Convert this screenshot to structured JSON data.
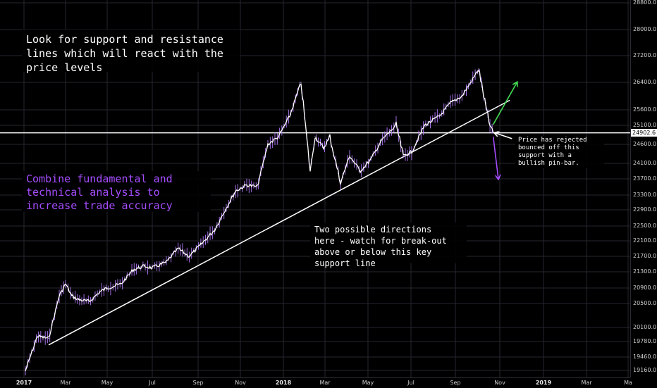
{
  "chart_data": {
    "type": "line",
    "title": "",
    "xlabel": "",
    "ylabel": "",
    "x_ticks": [
      "2017",
      "Mar",
      "May",
      "Jul",
      "Sep",
      "Nov",
      "2018",
      "Mar",
      "May",
      "Jul",
      "Sep",
      "Nov",
      "2019",
      "Mar",
      "Ma"
    ],
    "y_ticks": [
      "28800.0",
      "28000.0",
      "27200.0",
      "26400.0",
      "25600.0",
      "25100.0",
      "24600.0",
      "24100.0",
      "23700.0",
      "23300.0",
      "22900.0",
      "22500.0",
      "22100.0",
      "21700.0",
      "21300.0",
      "20900.0",
      "20500.0",
      "20100.0",
      "19780.0",
      "19460.0",
      "19160.0"
    ],
    "ylim": [
      19080,
      28900
    ],
    "grid": true,
    "series": [
      {
        "color": "#ffffff",
        "x": [
          "2017-01-03",
          "2017-01-20",
          "2017-02-05",
          "2017-02-20",
          "2017-03-01",
          "2017-03-10",
          "2017-03-20",
          "2017-04-05",
          "2017-04-20",
          "2017-05-01",
          "2017-05-20",
          "2017-06-05",
          "2017-06-20",
          "2017-07-01",
          "2017-07-20",
          "2017-08-05",
          "2017-08-20",
          "2017-09-05",
          "2017-09-25",
          "2017-10-10",
          "2017-10-25",
          "2017-11-10",
          "2017-11-25",
          "2017-12-10",
          "2017-12-25",
          "2018-01-10",
          "2018-01-26",
          "2018-02-08",
          "2018-02-15",
          "2018-02-27",
          "2018-03-08",
          "2018-03-23",
          "2018-04-05",
          "2018-04-20",
          "2018-05-05",
          "2018-05-20",
          "2018-06-10",
          "2018-06-20",
          "2018-07-02",
          "2018-07-20",
          "2018-08-10",
          "2018-08-25",
          "2018-09-10",
          "2018-09-25",
          "2018-10-03",
          "2018-10-10",
          "2018-10-17",
          "2018-10-23"
        ],
        "values": [
          19150,
          19900,
          19850,
          20700,
          21000,
          20700,
          20600,
          20550,
          20800,
          20900,
          21000,
          21350,
          21450,
          21400,
          21550,
          21900,
          21700,
          22000,
          22400,
          22900,
          23400,
          23550,
          23500,
          24600,
          24800,
          25400,
          26400,
          23900,
          24800,
          24500,
          24800,
          23600,
          24300,
          23900,
          24200,
          24700,
          25100,
          24300,
          24400,
          25100,
          25400,
          25800,
          26000,
          26500,
          26800,
          26000,
          25200,
          24900
        ]
      }
    ],
    "trend_line": {
      "x": [
        "2017-02-05",
        "2018-11-15"
      ],
      "values": [
        19710,
        25880
      ],
      "color": "#ffffff"
    },
    "support_line": {
      "value": 24902.6,
      "color": "#ffffff"
    },
    "arrows": [
      {
        "from": [
          "2018-10-23",
          25130
        ],
        "to": [
          "2018-11-25",
          26400
        ],
        "color": "#44dd55"
      },
      {
        "from": [
          "2018-10-23",
          24800
        ],
        "to": [
          "2018-10-30",
          23700
        ],
        "color": "#a64dff"
      },
      {
        "from": [
          "2018-11-18",
          24750
        ],
        "to": [
          "2018-10-25",
          24902.6
        ],
        "color": "#ffffff"
      }
    ]
  },
  "price_axis": {
    "current_price": "24902.6"
  },
  "annotations": {
    "support_resistance": "Look for support and resistance\nlines which will react with the\nprice levels",
    "fundamental": "Combine fundamental and\ntechnical analysis to\nincrease trade accuracy",
    "directions": "Two possible directions\nhere - watch for break-out\nabove or below this key\nsupport line",
    "pin_bar": "Price has rejected\nbounced off this\nsupport with a\nbullish pin-bar."
  },
  "colors": {
    "background": "#000000",
    "grid": "#26262f",
    "price_line": "#ffffff",
    "accent_purple": "#a64dff",
    "bullish": "#44dd55"
  }
}
